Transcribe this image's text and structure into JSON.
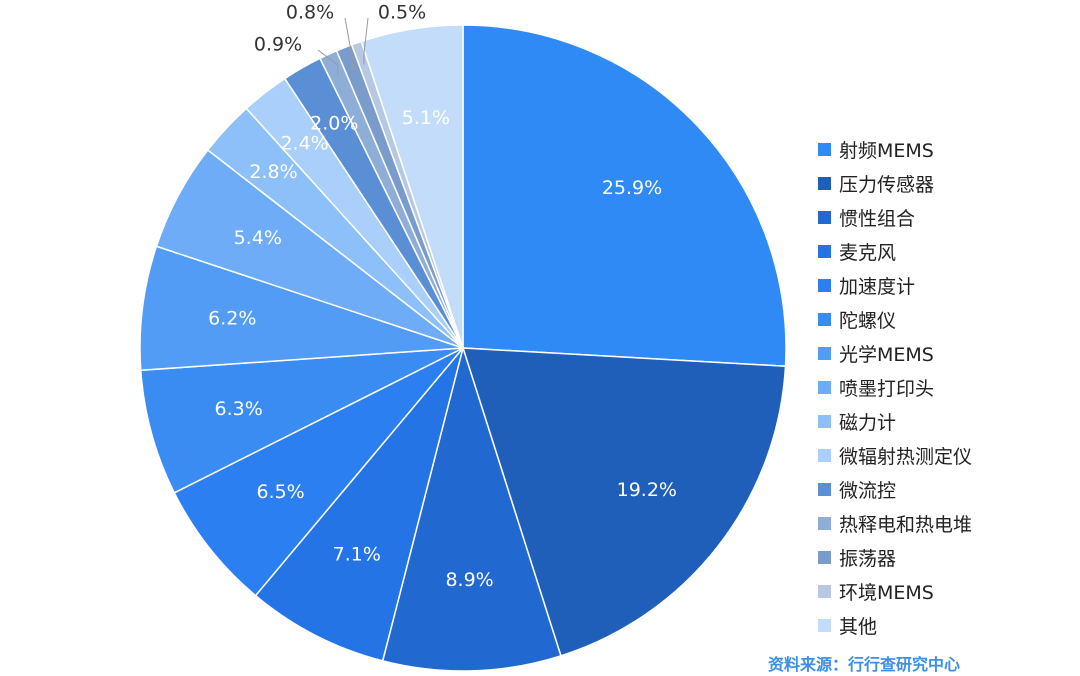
{
  "chart_data": {
    "type": "pie",
    "start_angle_deg": 0,
    "direction": "clockwise",
    "legend_position": "right",
    "slices": [
      {
        "name": "射频MEMS",
        "value": 25.9,
        "label": "25.9%",
        "color": "#2f8af5"
      },
      {
        "name": "压力传感器",
        "value": 19.2,
        "label": "19.2%",
        "color": "#1f5fba"
      },
      {
        "name": "惯性组合",
        "value": 8.9,
        "label": "8.9%",
        "color": "#2268d1"
      },
      {
        "name": "麦克风",
        "value": 7.1,
        "label": "7.1%",
        "color": "#2474e6"
      },
      {
        "name": "加速度计",
        "value": 6.5,
        "label": "6.5%",
        "color": "#2c7ff0"
      },
      {
        "name": "陀螺仪",
        "value": 6.3,
        "label": "6.3%",
        "color": "#3b8cf2"
      },
      {
        "name": "光学MEMS",
        "value": 6.2,
        "label": "6.2%",
        "color": "#529cf5"
      },
      {
        "name": "喷墨打印头",
        "value": 5.4,
        "label": "5.4%",
        "color": "#6eacf7"
      },
      {
        "name": "磁力计",
        "value": 2.8,
        "label": "2.8%",
        "color": "#8dbff8"
      },
      {
        "name": "微辐射热测定仪",
        "value": 2.4,
        "label": "2.4%",
        "color": "#a9cffa"
      },
      {
        "name": "微流控",
        "value": 2.0,
        "label": "2.0%",
        "color": "#5a8fd6"
      },
      {
        "name": "热释电和热电堆",
        "value": 0.9,
        "label": "0.9%",
        "color": "#8eaed8"
      },
      {
        "name": "振荡器",
        "value": 0.8,
        "label": "0.8%",
        "color": "#7a9ccc"
      },
      {
        "name": "环境MEMS",
        "value": 0.5,
        "label": "0.5%",
        "color": "#b7c9e2"
      },
      {
        "name": "其他",
        "value": 5.1,
        "label": "5.1%",
        "color": "#c2dcfa"
      }
    ]
  },
  "source": "资料来源：行行查研究中心"
}
